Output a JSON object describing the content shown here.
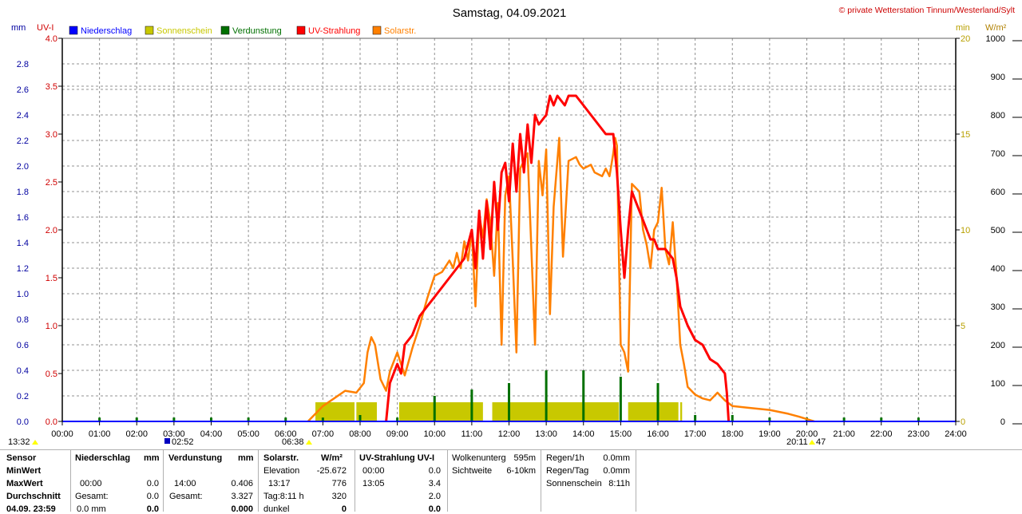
{
  "header": {
    "title": "Samstag, 04.09.2021",
    "copyright": "© private Wetterstation Tinnum/Westerland/Sylt"
  },
  "units": {
    "mm": "mm",
    "uv": "UV-I",
    "min": "min",
    "wm2": "W/m²"
  },
  "legend": [
    {
      "label": "Niederschlag",
      "color": "#0000ff"
    },
    {
      "label": "Sonnenschein",
      "color": "#c8c800"
    },
    {
      "label": "Verdunstung",
      "color": "#007000"
    },
    {
      "label": "UV-Strahlung",
      "color": "#ff0000"
    },
    {
      "label": "Solarstr.",
      "color": "#ff8000"
    }
  ],
  "markers": {
    "m1": "13:32",
    "m2": "02:52",
    "m3": "06:38",
    "m4": "20:11",
    "m5": "47"
  },
  "chart_data": {
    "type": "line",
    "x_ticks": [
      "00:00",
      "01:00",
      "02:00",
      "03:00",
      "04:00",
      "05:00",
      "06:00",
      "07:00",
      "08:00",
      "09:00",
      "10:00",
      "11:00",
      "12:00",
      "13:00",
      "14:00",
      "15:00",
      "16:00",
      "17:00",
      "18:00",
      "19:00",
      "20:00",
      "21:00",
      "22:00",
      "23:00",
      "24:00"
    ],
    "axes": {
      "mm": {
        "range": [
          0,
          3
        ],
        "ticks": [
          "0.0",
          "0.2",
          "0.4",
          "0.6",
          "0.8",
          "1.0",
          "1.2",
          "1.4",
          "1.6",
          "1.8",
          "2.0",
          "2.2",
          "2.4",
          "2.6",
          "2.8"
        ],
        "color": "#0000a0"
      },
      "uv": {
        "range": [
          0,
          4
        ],
        "ticks": [
          "0.0",
          "0.5",
          "1.0",
          "1.5",
          "2.0",
          "2.5",
          "3.0",
          "3.5",
          "4.0"
        ],
        "color": "#d00000"
      },
      "min": {
        "range": [
          0,
          20
        ],
        "ticks": [
          "0",
          "5",
          "10",
          "15",
          "20"
        ],
        "color": "#b8a000"
      },
      "wm2": {
        "range": [
          0,
          1000
        ],
        "ticks": [
          "0",
          "100",
          "200",
          "300",
          "400",
          "500",
          "600",
          "700",
          "800",
          "900",
          "1000"
        ],
        "color": "#000000"
      }
    },
    "series": [
      {
        "name": "Solarstr.",
        "axis": "wm2",
        "color": "#ff8000",
        "points": [
          [
            6.6,
            0
          ],
          [
            6.8,
            20
          ],
          [
            7.0,
            40
          ],
          [
            7.3,
            60
          ],
          [
            7.6,
            80
          ],
          [
            7.9,
            75
          ],
          [
            8.1,
            100
          ],
          [
            8.2,
            180
          ],
          [
            8.3,
            220
          ],
          [
            8.4,
            200
          ],
          [
            8.55,
            110
          ],
          [
            8.7,
            80
          ],
          [
            8.8,
            130
          ],
          [
            9.0,
            180
          ],
          [
            9.2,
            120
          ],
          [
            9.4,
            190
          ],
          [
            9.6,
            250
          ],
          [
            9.8,
            320
          ],
          [
            10.0,
            380
          ],
          [
            10.2,
            390
          ],
          [
            10.4,
            420
          ],
          [
            10.5,
            400
          ],
          [
            10.6,
            440
          ],
          [
            10.7,
            400
          ],
          [
            10.8,
            470
          ],
          [
            10.9,
            420
          ],
          [
            11.0,
            500
          ],
          [
            11.1,
            300
          ],
          [
            11.2,
            540
          ],
          [
            11.3,
            480
          ],
          [
            11.4,
            580
          ],
          [
            11.5,
            520
          ],
          [
            11.6,
            380
          ],
          [
            11.7,
            570
          ],
          [
            11.8,
            200
          ],
          [
            11.9,
            590
          ],
          [
            12.0,
            640
          ],
          [
            12.1,
            420
          ],
          [
            12.2,
            180
          ],
          [
            12.3,
            660
          ],
          [
            12.5,
            700
          ],
          [
            12.6,
            450
          ],
          [
            12.7,
            200
          ],
          [
            12.8,
            680
          ],
          [
            12.9,
            590
          ],
          [
            13.0,
            710
          ],
          [
            13.1,
            280
          ],
          [
            13.2,
            560
          ],
          [
            13.35,
            740
          ],
          [
            13.45,
            430
          ],
          [
            13.6,
            680
          ],
          [
            13.8,
            690
          ],
          [
            13.9,
            670
          ],
          [
            14.0,
            660
          ],
          [
            14.2,
            670
          ],
          [
            14.3,
            650
          ],
          [
            14.5,
            640
          ],
          [
            14.6,
            660
          ],
          [
            14.7,
            640
          ],
          [
            14.8,
            700
          ],
          [
            14.85,
            740
          ],
          [
            14.9,
            720
          ],
          [
            14.95,
            450
          ],
          [
            15.0,
            200
          ],
          [
            15.1,
            180
          ],
          [
            15.2,
            130
          ],
          [
            15.3,
            620
          ],
          [
            15.5,
            600
          ],
          [
            15.6,
            500
          ],
          [
            15.7,
            460
          ],
          [
            15.8,
            400
          ],
          [
            15.9,
            500
          ],
          [
            16.0,
            520
          ],
          [
            16.1,
            610
          ],
          [
            16.2,
            450
          ],
          [
            16.3,
            410
          ],
          [
            16.4,
            520
          ],
          [
            16.5,
            380
          ],
          [
            16.6,
            200
          ],
          [
            16.7,
            150
          ],
          [
            16.8,
            90
          ],
          [
            17.0,
            70
          ],
          [
            17.2,
            60
          ],
          [
            17.4,
            55
          ],
          [
            17.6,
            75
          ],
          [
            17.8,
            55
          ],
          [
            18.0,
            40
          ],
          [
            18.5,
            35
          ],
          [
            19.0,
            30
          ],
          [
            19.5,
            20
          ],
          [
            19.8,
            12
          ],
          [
            20.1,
            3
          ],
          [
            20.2,
            0
          ]
        ]
      },
      {
        "name": "UV-Strahlung",
        "axis": "uv",
        "color": "#ff0000",
        "points": [
          [
            8.7,
            0.0
          ],
          [
            8.8,
            0.4
          ],
          [
            8.9,
            0.5
          ],
          [
            9.0,
            0.6
          ],
          [
            9.1,
            0.5
          ],
          [
            9.2,
            0.8
          ],
          [
            9.4,
            0.9
          ],
          [
            9.6,
            1.1
          ],
          [
            9.8,
            1.2
          ],
          [
            10.0,
            1.3
          ],
          [
            10.2,
            1.4
          ],
          [
            10.4,
            1.5
          ],
          [
            10.6,
            1.6
          ],
          [
            10.8,
            1.7
          ],
          [
            11.0,
            2.0
          ],
          [
            11.1,
            1.6
          ],
          [
            11.2,
            2.2
          ],
          [
            11.3,
            1.7
          ],
          [
            11.4,
            2.3
          ],
          [
            11.5,
            1.8
          ],
          [
            11.6,
            2.5
          ],
          [
            11.7,
            2.0
          ],
          [
            11.8,
            2.6
          ],
          [
            11.9,
            2.7
          ],
          [
            12.0,
            2.3
          ],
          [
            12.1,
            2.9
          ],
          [
            12.2,
            2.4
          ],
          [
            12.3,
            3.0
          ],
          [
            12.4,
            2.6
          ],
          [
            12.5,
            3.1
          ],
          [
            12.6,
            2.7
          ],
          [
            12.7,
            3.2
          ],
          [
            12.8,
            3.1
          ],
          [
            13.0,
            3.2
          ],
          [
            13.1,
            3.4
          ],
          [
            13.2,
            3.3
          ],
          [
            13.3,
            3.4
          ],
          [
            13.5,
            3.3
          ],
          [
            13.6,
            3.4
          ],
          [
            13.8,
            3.4
          ],
          [
            14.0,
            3.3
          ],
          [
            14.2,
            3.2
          ],
          [
            14.4,
            3.1
          ],
          [
            14.6,
            3.0
          ],
          [
            14.8,
            3.0
          ],
          [
            14.9,
            2.6
          ],
          [
            15.0,
            2.0
          ],
          [
            15.1,
            1.5
          ],
          [
            15.2,
            2.0
          ],
          [
            15.3,
            2.4
          ],
          [
            15.4,
            2.3
          ],
          [
            15.5,
            2.2
          ],
          [
            15.6,
            2.1
          ],
          [
            15.7,
            2.0
          ],
          [
            15.8,
            1.9
          ],
          [
            15.9,
            1.9
          ],
          [
            16.0,
            1.8
          ],
          [
            16.2,
            1.8
          ],
          [
            16.4,
            1.7
          ],
          [
            16.5,
            1.5
          ],
          [
            16.6,
            1.2
          ],
          [
            16.8,
            1.0
          ],
          [
            17.0,
            0.85
          ],
          [
            17.2,
            0.8
          ],
          [
            17.4,
            0.65
          ],
          [
            17.6,
            0.6
          ],
          [
            17.8,
            0.5
          ],
          [
            17.85,
            0.3
          ],
          [
            17.9,
            0.0
          ]
        ]
      },
      {
        "name": "Sonnenschein",
        "axis": "min",
        "color": "#c8c800",
        "points": [
          [
            6.9,
            1
          ],
          [
            7.0,
            1
          ],
          [
            8.0,
            1
          ],
          [
            8.9,
            1
          ],
          [
            9.2,
            1
          ],
          [
            11.0,
            1
          ],
          [
            11.4,
            1
          ],
          [
            11.6,
            1
          ],
          [
            13.0,
            1
          ],
          [
            14.9,
            1
          ],
          [
            15.2,
            1
          ],
          [
            16.7,
            1
          ]
        ]
      },
      {
        "name": "Verdunstung",
        "axis": "mm",
        "color": "#007000",
        "points": [
          [
            1.0,
            0.03
          ],
          [
            2.0,
            0.03
          ],
          [
            3.0,
            0.03
          ],
          [
            4.0,
            0.03
          ],
          [
            5.0,
            0.03
          ],
          [
            6.0,
            0.03
          ],
          [
            7.0,
            0.03
          ],
          [
            8.0,
            0.05
          ],
          [
            9.0,
            0.03
          ],
          [
            10.0,
            0.2
          ],
          [
            11.0,
            0.25
          ],
          [
            12.0,
            0.3
          ],
          [
            13.0,
            0.4
          ],
          [
            14.0,
            0.4
          ],
          [
            15.0,
            0.35
          ],
          [
            16.0,
            0.3
          ],
          [
            17.0,
            0.05
          ],
          [
            18.0,
            0.05
          ],
          [
            19.0,
            0.03
          ],
          [
            20.0,
            0.03
          ],
          [
            21.0,
            0.03
          ],
          [
            22.0,
            0.03
          ],
          [
            23.0,
            0.03
          ]
        ]
      }
    ],
    "sunshine_blocks": [
      [
        6.8,
        7.85
      ],
      [
        7.9,
        8.45
      ],
      [
        9.05,
        11.3
      ],
      [
        11.55,
        14.95
      ],
      [
        15.2,
        16.55
      ],
      [
        16.6,
        16.65
      ]
    ]
  },
  "info": {
    "row_labels": [
      "Sensor",
      "MinWert",
      "MaxWert",
      "Durchschnitt",
      "04.09. 23:59"
    ],
    "niederschlag": {
      "header": "Niederschlag",
      "unit": "mm",
      "max_time": "00:00",
      "max_val": "0.0",
      "sum_label": "Gesamt:",
      "sum_val": "0.0",
      "last_left": "0.0 mm",
      "last_val": "0.0"
    },
    "verdunstung": {
      "header": "Verdunstung",
      "unit": "mm",
      "max_time": "14:00",
      "max_val": "0.406",
      "sum_label": "Gesamt:",
      "sum_val": "3.327",
      "last_val": "0.000"
    },
    "solar": {
      "header": "Solarstr.",
      "unit": "W/m²",
      "elev_label": "Elevation",
      "elev_val": "-25.672",
      "max_time": "13:17",
      "max_val": "776",
      "tag_label": "Tag:8:11 h",
      "tag_val": "320",
      "dark_label": "dunkel",
      "dark_val": "0"
    },
    "uv": {
      "header": "UV-Strahlung UV-I",
      "min_time": "00:00",
      "min_val": "0.0",
      "max_time": "13:05",
      "max_val": "3.4",
      "avg_val": "2.0",
      "last_val": "0.0"
    },
    "weather": {
      "cloud_label": "Wolkenunterg",
      "cloud_val": "595m",
      "vis_label": "Sichtweite",
      "vis_val": "6-10km"
    },
    "rain": {
      "r1_label": "Regen/1h",
      "r1_val": "0.0mm",
      "r2_label": "Regen/Tag",
      "r2_val": "0.0mm",
      "sun_label": "Sonnenschein",
      "sun_val": "8:11h"
    }
  }
}
